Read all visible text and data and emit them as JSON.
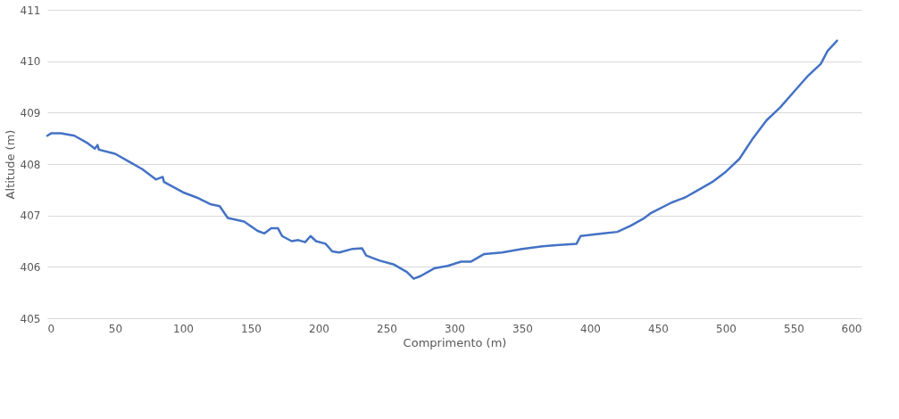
{
  "chart_data": {
    "type": "line",
    "xlabel": "Comprimento (m)",
    "ylabel": "Altitude (m)",
    "xlim": [
      0,
      600
    ],
    "xticks": [
      0,
      50,
      100,
      150,
      200,
      250,
      300,
      350,
      400,
      450,
      500,
      550,
      600
    ],
    "ylim": [
      405,
      411
    ],
    "yticks": [
      405,
      406,
      407,
      408,
      409,
      410,
      411
    ],
    "grid": "y",
    "marker": "none",
    "line_style": "solid",
    "series": [
      {
        "color": "#4472c4",
        "x": [
          0,
          3,
          10,
          20,
          30,
          35,
          37,
          38,
          50,
          60,
          70,
          80,
          85,
          86,
          100,
          110,
          120,
          127,
          133,
          145,
          155,
          160,
          165,
          170,
          173,
          180,
          185,
          190,
          194,
          198,
          205,
          210,
          215,
          225,
          232,
          235,
          245,
          255,
          265,
          270,
          275,
          285,
          295,
          305,
          312,
          322,
          335,
          350,
          365,
          375,
          390,
          393,
          410,
          420,
          430,
          440,
          445,
          460,
          470,
          480,
          490,
          500,
          510,
          520,
          530,
          540,
          550,
          560,
          570,
          575,
          582
        ],
        "values": [
          408.55,
          408.6,
          408.6,
          408.55,
          408.4,
          408.3,
          408.37,
          408.28,
          408.2,
          408.05,
          407.9,
          407.7,
          407.75,
          407.65,
          407.45,
          407.35,
          407.22,
          407.18,
          406.95,
          406.88,
          406.7,
          406.65,
          406.75,
          406.75,
          406.6,
          406.5,
          406.52,
          406.48,
          406.6,
          406.5,
          406.45,
          406.3,
          406.28,
          406.35,
          406.36,
          406.22,
          406.12,
          406.05,
          405.9,
          405.77,
          405.82,
          405.97,
          406.02,
          406.1,
          406.1,
          406.25,
          406.28,
          406.35,
          406.4,
          406.42,
          406.45,
          406.6,
          406.65,
          406.68,
          406.8,
          406.95,
          407.05,
          407.25,
          407.35,
          407.5,
          407.65,
          407.85,
          408.1,
          408.5,
          408.85,
          409.1,
          409.4,
          409.7,
          409.95,
          410.2,
          410.4
        ]
      }
    ]
  }
}
